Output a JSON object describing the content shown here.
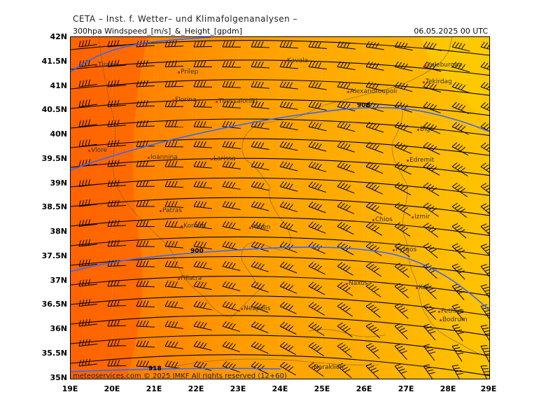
{
  "header": {
    "source_line": "CETA – Inst. f. Wetter– und Klimafolgenanalysen –",
    "product": "300hpa Windspeed_[m/s]_&_Height_[gpdm]",
    "valid_time": "06.05.2025 00 UTC"
  },
  "axes": {
    "lat_labels": [
      "42N",
      "41.5N",
      "41N",
      "40.5N",
      "40N",
      "39.5N",
      "39N",
      "38.5N",
      "38N",
      "37.5N",
      "37N",
      "36.5N",
      "36N",
      "35.5N",
      "35N"
    ],
    "lon_labels": [
      "19E",
      "20E",
      "21E",
      "22E",
      "23E",
      "24E",
      "25E",
      "26E",
      "27E",
      "28E",
      "29E"
    ]
  },
  "footer": {
    "credit": "meteoservices.com  © 2025 IMKF  All rights reserved  (12+60)"
  },
  "contour_labels": [
    "906",
    "900",
    "918"
  ],
  "cities": [
    {
      "name": "Tirana"
    },
    {
      "name": "Prilep"
    },
    {
      "name": "Florina"
    },
    {
      "name": "Thessaloniki"
    },
    {
      "name": "Kavala"
    },
    {
      "name": "Alexandroupoli"
    },
    {
      "name": "Luleburgaz"
    },
    {
      "name": "Tekirdag"
    },
    {
      "name": "Biga"
    },
    {
      "name": "Vlore"
    },
    {
      "name": "Ioannina"
    },
    {
      "name": "Larissa"
    },
    {
      "name": "Edremit"
    },
    {
      "name": "Patras"
    },
    {
      "name": "Korinth"
    },
    {
      "name": "Athen"
    },
    {
      "name": "Chios"
    },
    {
      "name": "Izmir"
    },
    {
      "name": "Kos"
    },
    {
      "name": "Pyrgos"
    },
    {
      "name": "Filiatra"
    },
    {
      "name": "Naxos"
    },
    {
      "name": "Neapolis"
    },
    {
      "name": "Bodrum"
    },
    {
      "name": "Fethiye"
    },
    {
      "name": "Heraklion"
    }
  ],
  "colors": {
    "background_dark": "#ff6a00",
    "background_mid": "#ff9400",
    "background_light": "#ffb800",
    "background_lightest": "#ffc800",
    "contour": "#3366ff",
    "barbs": "#000000",
    "coast": "#7a5a2a"
  }
}
